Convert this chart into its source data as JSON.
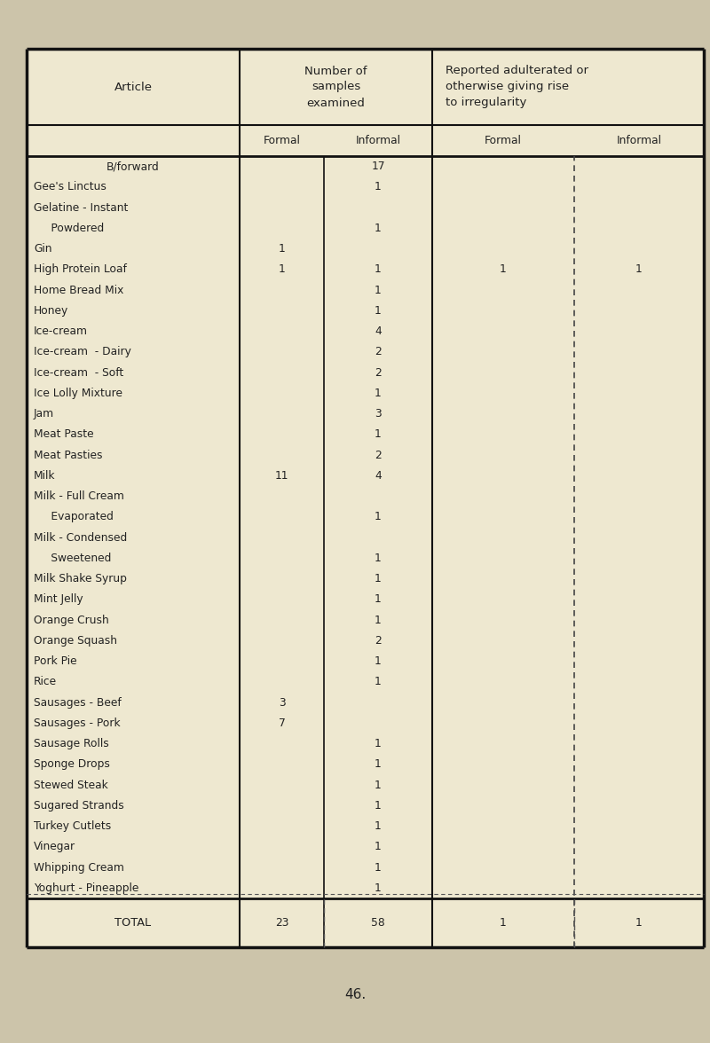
{
  "bg_color": "#eee8d0",
  "page_bg": "#ccc4aa",
  "title_col1": "Article",
  "title_col2_line1": "Number of",
  "title_col2_line2": "samples",
  "title_col2_line3": "examined",
  "title_col3_line1": "Reported adulterated or",
  "title_col3_line2": "otherwise giving rise",
  "title_col3_line3": "to irregularity",
  "sub_header": [
    "Formal",
    "Informal",
    "Formal",
    "Informal"
  ],
  "rows": [
    {
      "article": "B/forward",
      "formal": "",
      "informal": "17",
      "rep_formal": "",
      "rep_informal": "",
      "center_article": true
    },
    {
      "article": "Gee's Linctus",
      "formal": "",
      "informal": "1",
      "rep_formal": "",
      "rep_informal": ""
    },
    {
      "article": "Gelatine - Instant",
      "formal": "",
      "informal": "",
      "rep_formal": "",
      "rep_informal": ""
    },
    {
      "article": "     Powdered",
      "formal": "",
      "informal": "1",
      "rep_formal": "",
      "rep_informal": ""
    },
    {
      "article": "Gin",
      "formal": "1",
      "informal": "",
      "rep_formal": "",
      "rep_informal": ""
    },
    {
      "article": "High Protein Loaf",
      "formal": "1",
      "informal": "1",
      "rep_formal": "1",
      "rep_informal": "1"
    },
    {
      "article": "Home Bread Mix",
      "formal": "",
      "informal": "1",
      "rep_formal": "",
      "rep_informal": ""
    },
    {
      "article": "Honey",
      "formal": "",
      "informal": "1",
      "rep_formal": "",
      "rep_informal": ""
    },
    {
      "article": "Ice-cream",
      "formal": "",
      "informal": "4",
      "rep_formal": "",
      "rep_informal": ""
    },
    {
      "article": "Ice-cream  - Dairy",
      "formal": "",
      "informal": "2",
      "rep_formal": "",
      "rep_informal": ""
    },
    {
      "article": "Ice-cream  - Soft",
      "formal": "",
      "informal": "2",
      "rep_formal": "",
      "rep_informal": ""
    },
    {
      "article": "Ice Lolly Mixture",
      "formal": "",
      "informal": "1",
      "rep_formal": "",
      "rep_informal": ""
    },
    {
      "article": "Jam",
      "formal": "",
      "informal": "3",
      "rep_formal": "",
      "rep_informal": ""
    },
    {
      "article": "Meat Paste",
      "formal": "",
      "informal": "1",
      "rep_formal": "",
      "rep_informal": ""
    },
    {
      "article": "Meat Pasties",
      "formal": "",
      "informal": "2",
      "rep_formal": "",
      "rep_informal": ""
    },
    {
      "article": "Milk",
      "formal": "11",
      "informal": "4",
      "rep_formal": "",
      "rep_informal": ""
    },
    {
      "article": "Milk - Full Cream",
      "formal": "",
      "informal": "",
      "rep_formal": "",
      "rep_informal": ""
    },
    {
      "article": "     Evaporated",
      "formal": "",
      "informal": "1",
      "rep_formal": "",
      "rep_informal": ""
    },
    {
      "article": "Milk - Condensed",
      "formal": "",
      "informal": "",
      "rep_formal": "",
      "rep_informal": ""
    },
    {
      "article": "     Sweetened",
      "formal": "",
      "informal": "1",
      "rep_formal": "",
      "rep_informal": ""
    },
    {
      "article": "Milk Shake Syrup",
      "formal": "",
      "informal": "1",
      "rep_formal": "",
      "rep_informal": ""
    },
    {
      "article": "Mint Jelly",
      "formal": "",
      "informal": "1",
      "rep_formal": "",
      "rep_informal": ""
    },
    {
      "article": "Orange Crush",
      "formal": "",
      "informal": "1",
      "rep_formal": "",
      "rep_informal": ""
    },
    {
      "article": "Orange Squash",
      "formal": "",
      "informal": "2",
      "rep_formal": "",
      "rep_informal": ""
    },
    {
      "article": "Pork Pie",
      "formal": "",
      "informal": "1",
      "rep_formal": "",
      "rep_informal": ""
    },
    {
      "article": "Rice",
      "formal": "",
      "informal": "1",
      "rep_formal": "",
      "rep_informal": ""
    },
    {
      "article": "Sausages - Beef",
      "formal": "3",
      "informal": "",
      "rep_formal": "",
      "rep_informal": ""
    },
    {
      "article": "Sausages - Pork",
      "formal": "7",
      "informal": "",
      "rep_formal": "",
      "rep_informal": ""
    },
    {
      "article": "Sausage Rolls",
      "formal": "",
      "informal": "1",
      "rep_formal": "",
      "rep_informal": ""
    },
    {
      "article": "Sponge Drops",
      "formal": "",
      "informal": "1",
      "rep_formal": "",
      "rep_informal": ""
    },
    {
      "article": "Stewed Steak",
      "formal": "",
      "informal": "1",
      "rep_formal": "",
      "rep_informal": ""
    },
    {
      "article": "Sugared Strands",
      "formal": "",
      "informal": "1",
      "rep_formal": "",
      "rep_informal": ""
    },
    {
      "article": "Turkey Cutlets",
      "formal": "",
      "informal": "1",
      "rep_formal": "",
      "rep_informal": ""
    },
    {
      "article": "Vinegar",
      "formal": "",
      "informal": "1",
      "rep_formal": "",
      "rep_informal": ""
    },
    {
      "article": "Whipping Cream",
      "formal": "",
      "informal": "1",
      "rep_formal": "",
      "rep_informal": ""
    },
    {
      "article": "Yoghurt - Pineapple",
      "formal": "",
      "informal": "1",
      "rep_formal": "",
      "rep_informal": ""
    }
  ],
  "total_row": {
    "article": "TOTAL",
    "formal": "23",
    "informal": "58",
    "rep_formal": "1",
    "rep_informal": "1"
  },
  "footer_text": "46.",
  "font_family": "Courier New",
  "font_size": 8.8,
  "header_font_size": 9.5,
  "text_color": "#222222"
}
